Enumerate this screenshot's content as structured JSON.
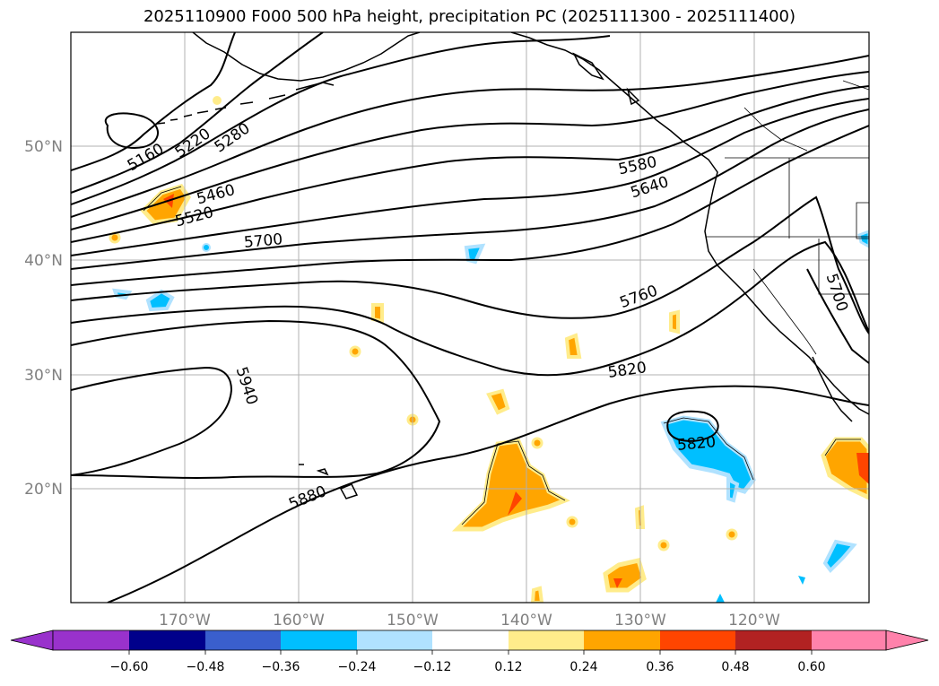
{
  "title": "2025110900 F000 500 hPa height, precipitation PC (2025111300 - 2025111400)",
  "map": {
    "lon_range": [
      -180,
      -110
    ],
    "lat_range": [
      10,
      60
    ],
    "grid_color": "#b0b0b0",
    "lat_labels": [
      "50°N",
      "40°N",
      "30°N",
      "20°N"
    ],
    "lon_labels": [
      "170°W",
      "160°W",
      "150°W",
      "140°W",
      "130°W",
      "120°W"
    ]
  },
  "contours": {
    "field": "500 hPa height",
    "labels": [
      {
        "value": "5160",
        "angle": -30
      },
      {
        "value": "5220",
        "angle": -35
      },
      {
        "value": "5280",
        "angle": -35
      },
      {
        "value": "5460",
        "angle": -15
      },
      {
        "value": "5520",
        "angle": -15
      },
      {
        "value": "5580",
        "angle": -12
      },
      {
        "value": "5640",
        "angle": -18
      },
      {
        "value": "5700",
        "angle": -5
      },
      {
        "value": "5700",
        "angle": 72
      },
      {
        "value": "5760",
        "angle": -20
      },
      {
        "value": "5820",
        "angle": -8
      },
      {
        "value": "5820",
        "angle": -5
      },
      {
        "value": "5880",
        "angle": -22
      },
      {
        "value": "5940",
        "angle": 72
      }
    ]
  },
  "colorbar": {
    "ticks": [
      "−0.60",
      "−0.48",
      "−0.36",
      "−0.24",
      "−0.12",
      "0.12",
      "0.24",
      "0.36",
      "0.48",
      "0.60"
    ],
    "colors": [
      "#9932cc",
      "#00008b",
      "#3a5fcd",
      "#00bfff",
      "#b0e2ff",
      "#ffffff",
      "#ffec8b",
      "#ffa500",
      "#ff4500",
      "#b22222",
      "#ff82ab"
    ]
  }
}
